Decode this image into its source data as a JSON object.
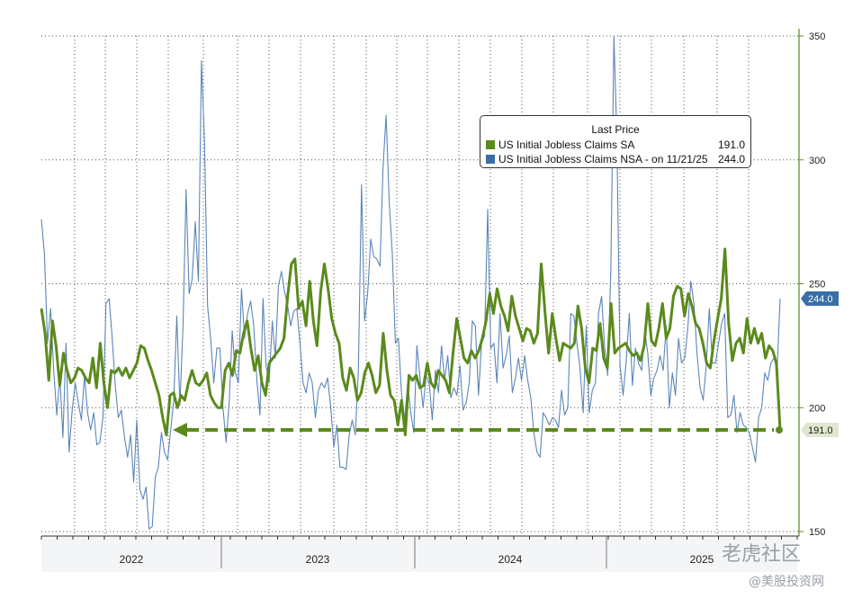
{
  "chart_data": {
    "type": "line",
    "ylim": [
      150,
      350
    ],
    "y_ticks": [
      150,
      200,
      250,
      300,
      350
    ],
    "x_labels": [
      "2022",
      "2023",
      "2024",
      "2025"
    ],
    "grid": true,
    "legend_placement": "top-right",
    "legend_title": "Last Price",
    "series": [
      {
        "name": "US Initial Jobless Claims SA",
        "color": "#5b8a1c",
        "last_value_label": "191.0",
        "last_date": "",
        "values": [
          240,
          230,
          211,
          235,
          225,
          209,
          222,
          215,
          210,
          212,
          216,
          215,
          212,
          210,
          220,
          208,
          226,
          210,
          200,
          215,
          214,
          216,
          213,
          216,
          212,
          215,
          218,
          225,
          224,
          219,
          215,
          210,
          205,
          196,
          189,
          205,
          206,
          200,
          205,
          203,
          210,
          215,
          210,
          209,
          211,
          214,
          205,
          202,
          200,
          200,
          215,
          218,
          213,
          223,
          222,
          230,
          235,
          224,
          215,
          221,
          210,
          205,
          218,
          220,
          222,
          224,
          228,
          245,
          258,
          260,
          240,
          243,
          233,
          251,
          235,
          225,
          247,
          258,
          248,
          236,
          230,
          226,
          212,
          207,
          216,
          212,
          203,
          206,
          214,
          218,
          213,
          206,
          209,
          230,
          215,
          205,
          203,
          193,
          203,
          189,
          213,
          211,
          213,
          208,
          209,
          218,
          210,
          208,
          215,
          213,
          211,
          206,
          222,
          236,
          228,
          220,
          218,
          223,
          220,
          223,
          228,
          235,
          246,
          238,
          248,
          241,
          237,
          231,
          245,
          237,
          232,
          227,
          232,
          231,
          226,
          230,
          258,
          239,
          222,
          238,
          228,
          219,
          226,
          225,
          224,
          226,
          241,
          232,
          216,
          210,
          224,
          223,
          234,
          220,
          216,
          242,
          222,
          224,
          225,
          226,
          223,
          221,
          222,
          219,
          225,
          242,
          227,
          225,
          232,
          242,
          228,
          232,
          245,
          249,
          248,
          237,
          246,
          241,
          234,
          232,
          226,
          218,
          216,
          227,
          236,
          244,
          264,
          234,
          219,
          226,
          228,
          222,
          236,
          226,
          232,
          226,
          230,
          220,
          225,
          223,
          218,
          191
        ]
      },
      {
        "name": "US Initial Jobless Claims NSA - on 11/21/25",
        "color": "#3a6ea5",
        "last_value_label": "244.0",
        "last_date": "11/21/25",
        "values": [
          276,
          262,
          226,
          240,
          215,
          197,
          213,
          188,
          226,
          182,
          199,
          210,
          202,
          195,
          213,
          198,
          191,
          198,
          185,
          186,
          196,
          242,
          244,
          228,
          209,
          196,
          199,
          188,
          180,
          189,
          170,
          195,
          167,
          163,
          168,
          151,
          152,
          172,
          176,
          190,
          182,
          179,
          191,
          203,
          237,
          201,
          233,
          288,
          246,
          252,
          275,
          251,
          340,
          307,
          241,
          228,
          210,
          224,
          224,
          200,
          186,
          202,
          231,
          214,
          210,
          248,
          228,
          238,
          243,
          233,
          211,
          197,
          244,
          217,
          210,
          235,
          220,
          249,
          255,
          247,
          241,
          233,
          239,
          240,
          226,
          210,
          206,
          214,
          210,
          196,
          207,
          210,
          208,
          212,
          200,
          184,
          193,
          176,
          176,
          175,
          189,
          195,
          189,
          215,
          290,
          235,
          246,
          268,
          261,
          260,
          257,
          297,
          318,
          283,
          262,
          226,
          228,
          206,
          195,
          210,
          198,
          190,
          225,
          212,
          200,
          213,
          210,
          195,
          215,
          206,
          225,
          211,
          221,
          204,
          208,
          205,
          217,
          199,
          202,
          210,
          235,
          233,
          205,
          226,
          229,
          280,
          224,
          226,
          210,
          238,
          216,
          221,
          229,
          206,
          212,
          220,
          211,
          221,
          211,
          204,
          190,
          182,
          180,
          198,
          196,
          193,
          196,
          195,
          192,
          207,
          197,
          200,
          238,
          237,
          226,
          216,
          198,
          233,
          198,
          207,
          210,
          238,
          245,
          224,
          213,
          256,
          350,
          307,
          217,
          205,
          219,
          238,
          209,
          224,
          218,
          215,
          231,
          222,
          205,
          212,
          215,
          221,
          215,
          233,
          200,
          214,
          205,
          228,
          218,
          220,
          232,
          251,
          242,
          222,
          208,
          203,
          217,
          240,
          218,
          218,
          226,
          234,
          238,
          196,
          197,
          205,
          190,
          198,
          193,
          192,
          190,
          184,
          178,
          196,
          200,
          214,
          211,
          218,
          220,
          215,
          244
        ]
      }
    ]
  },
  "watermarks": {
    "line1": "老虎社区",
    "line2": "@美股投资网"
  }
}
